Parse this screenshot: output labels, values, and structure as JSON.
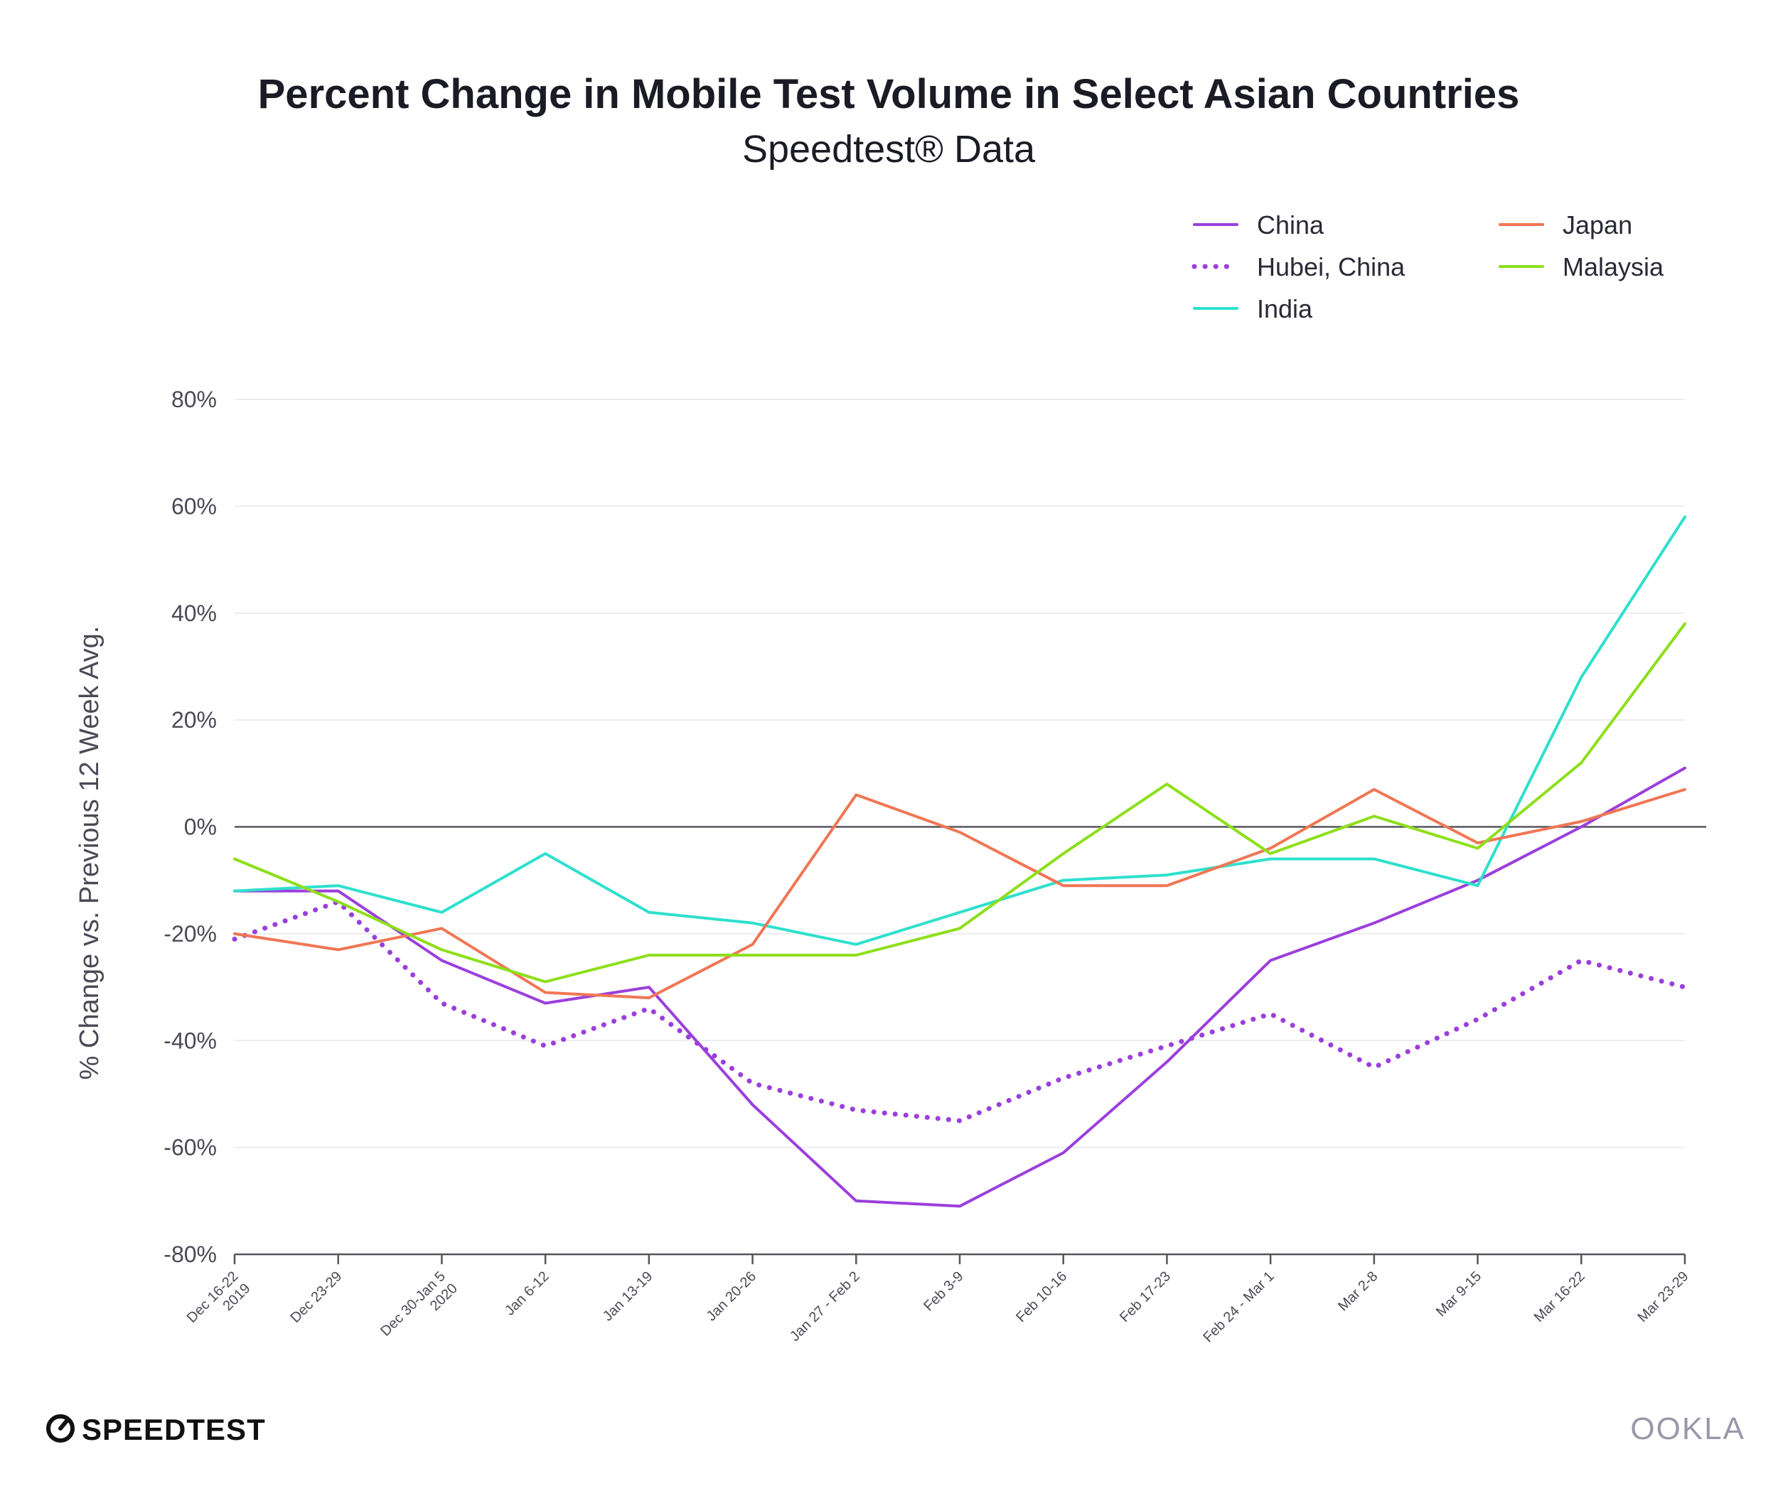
{
  "chart_data": {
    "type": "line",
    "title": "Percent Change in Mobile Test Volume in Select Asian Countries",
    "subtitle": "Speedtest® Data",
    "ylabel": "% Change vs. Previous 12 Week Avg.",
    "xlabel": "",
    "ylim": [
      -80,
      80
    ],
    "yticks": [
      {
        "value": 80,
        "label": "80%"
      },
      {
        "value": 60,
        "label": "60%"
      },
      {
        "value": 40,
        "label": "40%"
      },
      {
        "value": 20,
        "label": "20%"
      },
      {
        "value": 0,
        "label": "0%"
      },
      {
        "value": -20,
        "label": "-20%"
      },
      {
        "value": -40,
        "label": "-40%"
      },
      {
        "value": -60,
        "label": "-60%"
      },
      {
        "value": -80,
        "label": "-80%"
      }
    ],
    "categories": [
      [
        "Dec 16-22",
        "2019"
      ],
      [
        "Dec 23-29"
      ],
      [
        "Dec 30-Jan 5",
        "2020"
      ],
      [
        "Jan 6-12"
      ],
      [
        "Jan 13-19"
      ],
      [
        "Jan 20-26"
      ],
      [
        "Jan 27 - Feb 2"
      ],
      [
        "Feb 3-9"
      ],
      [
        "Feb 10-16"
      ],
      [
        "Feb 17-23"
      ],
      [
        "Feb 24 - Mar 1"
      ],
      [
        "Mar 2-8"
      ],
      [
        "Mar 9-15"
      ],
      [
        "Mar 16-22"
      ],
      [
        "Mar 23-29"
      ]
    ],
    "grid": true,
    "legend_position": "top-right",
    "series": [
      {
        "name": "China",
        "color": "#9b3fdc",
        "dashed": false,
        "values": [
          -12,
          -12,
          -25,
          -33,
          -30,
          -52,
          -70,
          -71,
          -61,
          -44,
          -25,
          -18,
          -10,
          0,
          11
        ]
      },
      {
        "name": "Hubei, China",
        "color": "#9b3fdc",
        "dashed": true,
        "values": [
          -21,
          -14,
          -33,
          -41,
          -34,
          -48,
          -53,
          -55,
          -47,
          -41,
          -35,
          -45,
          -36,
          -25,
          -30
        ]
      },
      {
        "name": "India",
        "color": "#2ee0cd",
        "dashed": false,
        "values": [
          -12,
          -11,
          -16,
          -5,
          -16,
          -18,
          -22,
          -16,
          -10,
          -9,
          -6,
          -6,
          -11,
          28,
          58
        ]
      },
      {
        "name": "Japan",
        "color": "#f07654",
        "dashed": false,
        "values": [
          -20,
          -23,
          -19,
          -31,
          -32,
          -22,
          6,
          -1,
          -11,
          -11,
          -4,
          7,
          -3,
          1,
          7
        ]
      },
      {
        "name": "Malaysia",
        "color": "#8ddf1a",
        "dashed": false,
        "values": [
          -6,
          -14,
          -23,
          -29,
          -24,
          -24,
          -24,
          -19,
          -5,
          8,
          -5,
          2,
          -4,
          12,
          38
        ]
      }
    ]
  },
  "footer": {
    "brand_left": "SPEEDTEST",
    "brand_right": "OOKLA"
  }
}
